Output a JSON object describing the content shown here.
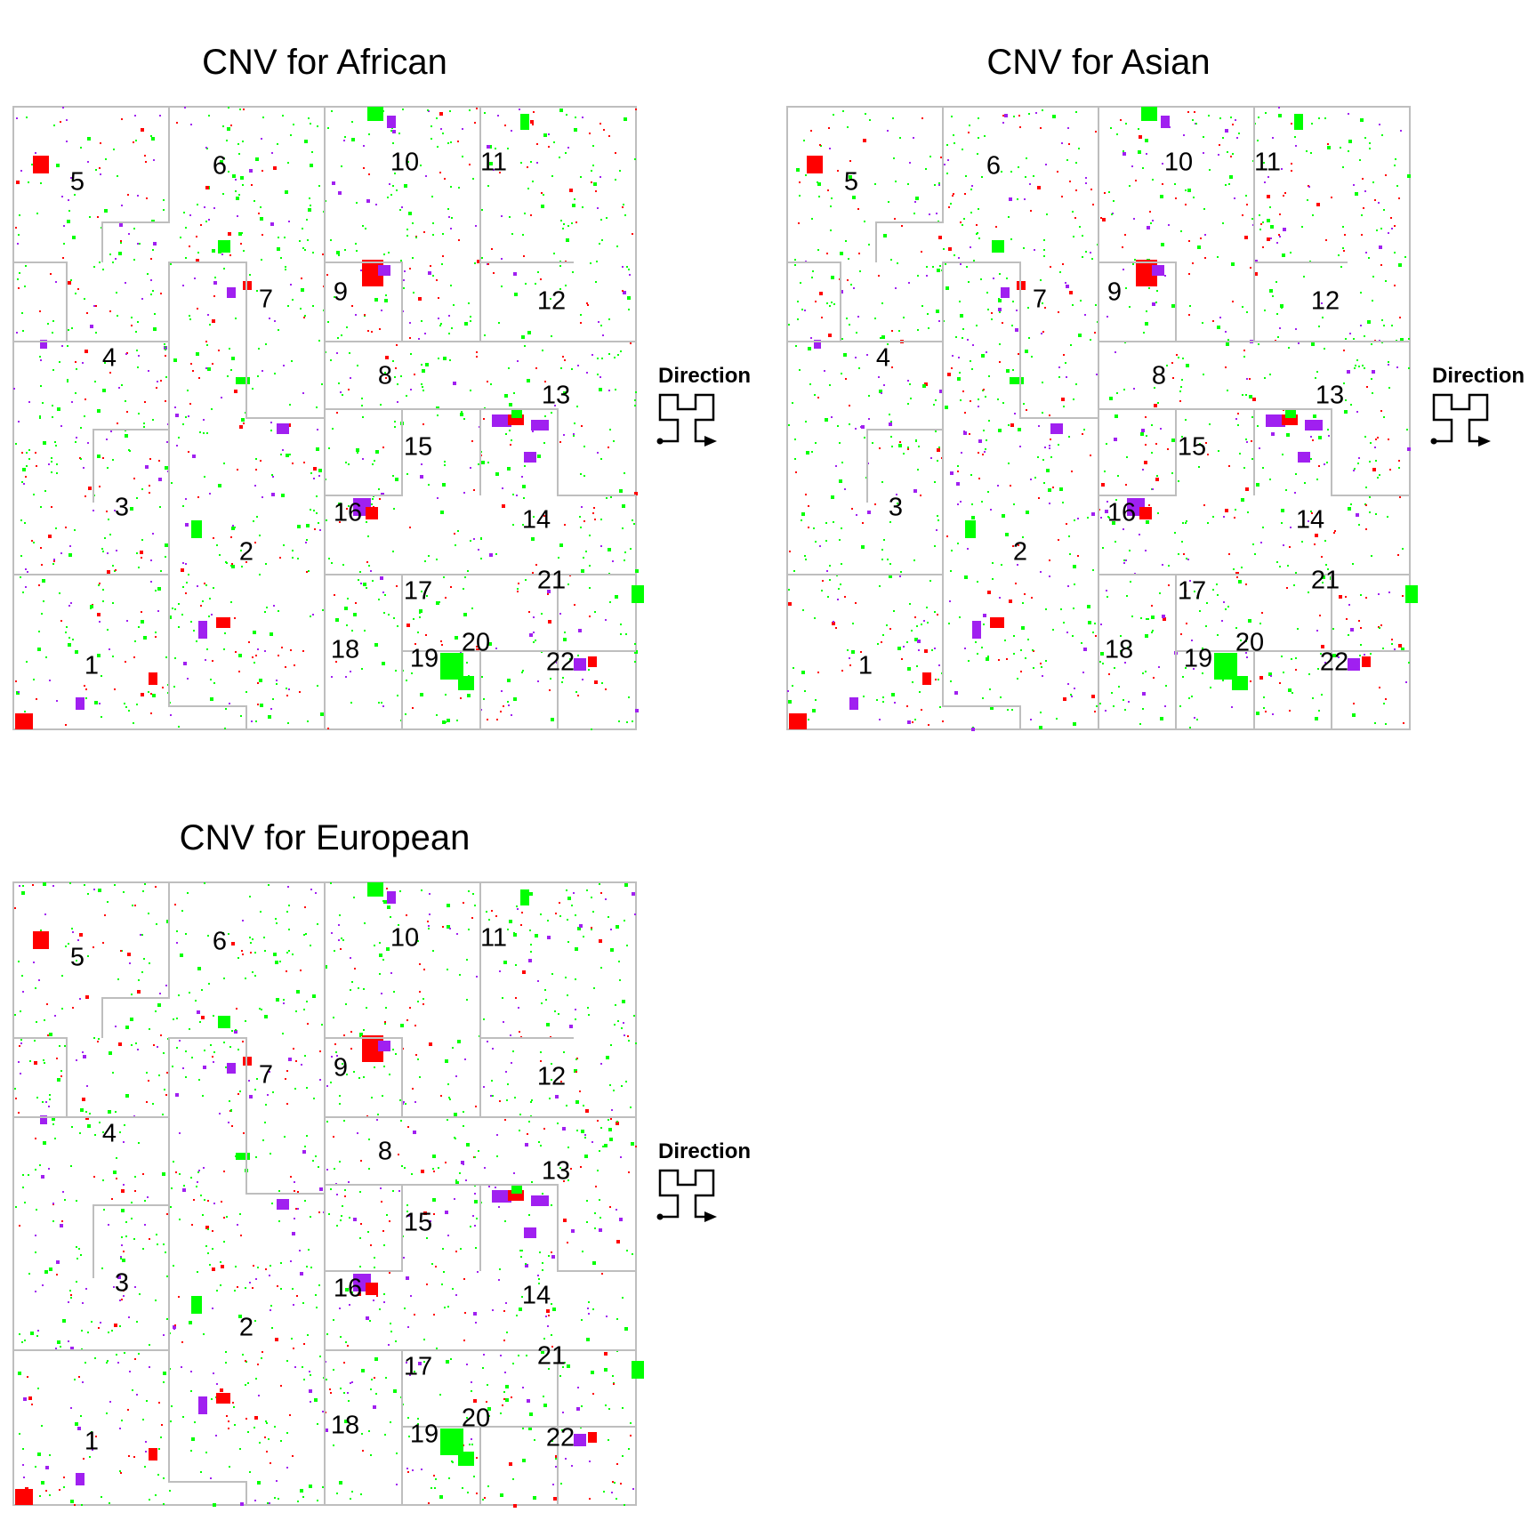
{
  "chart_data": [
    {
      "type": "heatmap",
      "subtype": "hilbert-curve",
      "title": "CNV for African",
      "chromosome_labels": [
        "1",
        "2",
        "3",
        "4",
        "5",
        "6",
        "7",
        "8",
        "9",
        "10",
        "11",
        "12",
        "13",
        "14",
        "15",
        "16",
        "17",
        "18",
        "19",
        "20",
        "21",
        "22"
      ],
      "colors": {
        "loss": "#ff0000",
        "gain": "#00ff00",
        "other": "#a020f0",
        "border": "#bebebe"
      },
      "legend_title": "Direction",
      "legend_placement": "right"
    },
    {
      "type": "heatmap",
      "subtype": "hilbert-curve",
      "title": "CNV for Asian",
      "chromosome_labels": [
        "1",
        "2",
        "3",
        "4",
        "5",
        "6",
        "7",
        "8",
        "9",
        "10",
        "11",
        "12",
        "13",
        "14",
        "15",
        "16",
        "17",
        "18",
        "19",
        "20",
        "21",
        "22"
      ],
      "colors": {
        "loss": "#ff0000",
        "gain": "#00ff00",
        "other": "#a020f0",
        "border": "#bebebe"
      },
      "legend_title": "Direction",
      "legend_placement": "right"
    },
    {
      "type": "heatmap",
      "subtype": "hilbert-curve",
      "title": "CNV for European",
      "chromosome_labels": [
        "1",
        "2",
        "3",
        "4",
        "5",
        "6",
        "7",
        "8",
        "9",
        "10",
        "11",
        "12",
        "13",
        "14",
        "15",
        "16",
        "17",
        "18",
        "19",
        "20",
        "21",
        "22"
      ],
      "colors": {
        "loss": "#ff0000",
        "gain": "#00ff00",
        "other": "#a020f0",
        "border": "#bebebe"
      },
      "legend_title": "Direction",
      "legend_placement": "right"
    }
  ]
}
